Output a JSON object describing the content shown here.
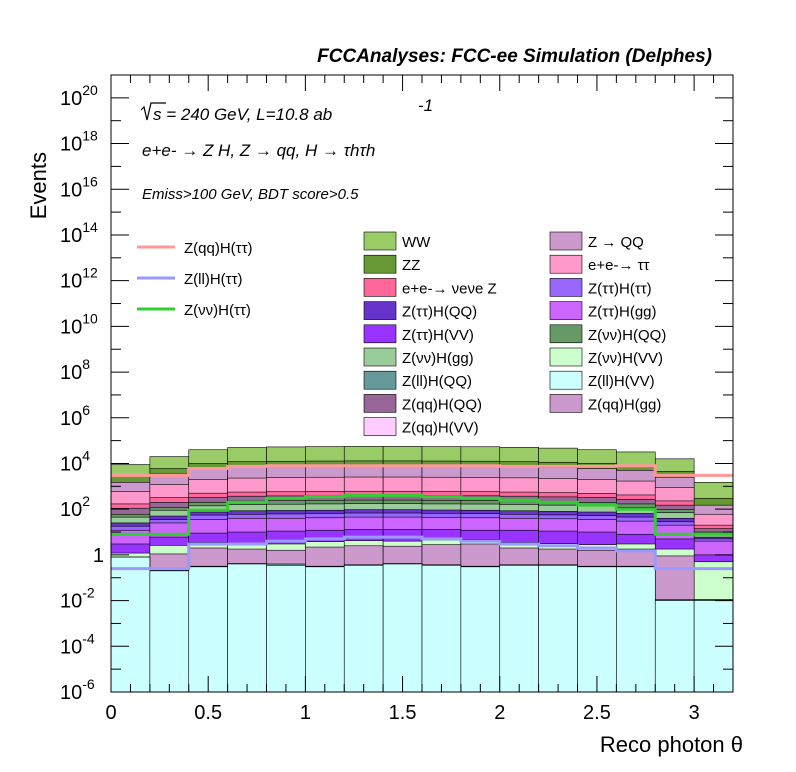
{
  "header": {
    "title": "FCCAnalyses: FCC-ee Simulation (Delphes)"
  },
  "annotations": {
    "sqrt_s": "s = 240 GeV, L=10.8 ab",
    "lumi_exp": "-1",
    "process": "e+e- → Z H, Z → qq, H → τhτh",
    "selection": "Emiss>100 GeV, BDT score>0.5"
  },
  "chart_data": {
    "type": "histogram",
    "title": "FCCAnalyses: FCC-ee Simulation (Delphes)",
    "xlabel": "Reco photon θ",
    "ylabel": "Events",
    "xlim": [
      0,
      3.2
    ],
    "ylim": [
      1e-06,
      1e+21
    ],
    "yscale": "log",
    "x_ticks": [
      0,
      0.5,
      1,
      1.5,
      2,
      2.5,
      3
    ],
    "x_tick_labels": [
      "0",
      "0.5",
      "1",
      "1.5",
      "2",
      "2.5",
      "3"
    ],
    "y_tick_exponents": [
      -6,
      -4,
      -2,
      0,
      2,
      4,
      6,
      8,
      10,
      12,
      14,
      16,
      18,
      20
    ],
    "y_tick_labels": [
      "10-6",
      "10-4",
      "10-2",
      "1",
      "102",
      "104",
      "106",
      "108",
      "1010",
      "1012",
      "1014",
      "1016",
      "1018",
      "1020"
    ],
    "bin_edges": [
      0,
      0.2,
      0.4,
      0.6,
      0.8,
      1.0,
      1.2,
      1.4,
      1.6,
      1.8,
      2.0,
      2.2,
      2.4,
      2.6,
      2.8,
      3.0,
      3.2
    ],
    "stack_levels": [
      {
        "name": "Z(ll)H(VV)",
        "color": "#ccffff",
        "values": [
          0.8,
          0.2,
          0.3,
          0.4,
          0.35,
          0.3,
          0.35,
          0.4,
          0.35,
          0.3,
          0.35,
          0.35,
          0.3,
          0.3,
          0.01,
          0.01
        ]
      },
      {
        "name": "Z(ll)H(QQ)",
        "color": "#669999",
        "values": [
          0.81,
          0.21,
          0.32,
          0.42,
          0.4,
          0.32,
          0.37,
          0.42,
          0.37,
          0.32,
          0.37,
          0.37,
          0.32,
          0.32,
          0.011,
          0.011
        ]
      },
      {
        "name": "Z(qq)H(gg)",
        "color": "#cc99cc",
        "values": [
          0.015,
          1.1,
          2.0,
          1.8,
          1.6,
          2.2,
          2.5,
          2.4,
          2.8,
          3.0,
          2.0,
          1.8,
          1.6,
          1.8,
          0.9,
          0.011
        ]
      },
      {
        "name": "Z(νν)H(VV)",
        "color": "#ccffcc",
        "values": [
          1.2,
          2.6,
          3.5,
          3.2,
          3.0,
          3.8,
          4.2,
          4.0,
          4.5,
          4.8,
          3.5,
          3.1,
          2.8,
          3.0,
          1.8,
          0.5
        ]
      },
      {
        "name": "Z(ττ)H(VV)",
        "color": "#9933ff",
        "values": [
          3.0,
          6.0,
          9.0,
          10.0,
          11.0,
          12.0,
          13.0,
          13.0,
          13.0,
          12.0,
          12.0,
          11.0,
          10.0,
          8.0,
          5.0,
          1.0
        ]
      },
      {
        "name": "Z(ττ)H(gg)",
        "color": "#cc66ff",
        "values": [
          12,
          25,
          35,
          40,
          40,
          42,
          45,
          45,
          44,
          42,
          40,
          38,
          35,
          30,
          20,
          4
        ]
      },
      {
        "name": "Z(ττ)H(ττ)",
        "color": "#9966ff",
        "values": [
          18,
          35,
          55,
          60,
          62,
          65,
          68,
          68,
          66,
          64,
          60,
          56,
          52,
          45,
          28,
          5
        ]
      },
      {
        "name": "Z(ττ)H(QQ)",
        "color": "#6633cc",
        "values": [
          25,
          50,
          75,
          85,
          88,
          90,
          95,
          95,
          92,
          90,
          85,
          80,
          75,
          65,
          40,
          6
        ]
      },
      {
        "name": "Z(νν)H(gg)",
        "color": "#99cc99",
        "values": [
          45,
          90,
          140,
          160,
          165,
          170,
          175,
          175,
          170,
          168,
          160,
          150,
          140,
          120,
          70,
          8
        ]
      },
      {
        "name": "Z(νν)H(QQ)",
        "color": "#669966",
        "values": [
          60,
          120,
          200,
          230,
          235,
          245,
          250,
          250,
          245,
          240,
          230,
          215,
          200,
          170,
          95,
          10
        ]
      },
      {
        "name": "Z(qq)H(QQ)",
        "color": "#996699",
        "values": [
          110,
          200,
          320,
          370,
          380,
          390,
          400,
          400,
          395,
          385,
          370,
          345,
          320,
          270,
          150,
          14
        ]
      },
      {
        "name": "e+e-→ νeνe Z",
        "color": "#ff6699",
        "values": [
          170,
          320,
          500,
          560,
          580,
          600,
          610,
          610,
          600,
          590,
          560,
          530,
          490,
          420,
          230,
          20
        ]
      },
      {
        "name": "e+e-→ ττ",
        "color": "#ff99cc",
        "values": [
          600,
          1200,
          2000,
          2300,
          2400,
          2500,
          2550,
          2550,
          2500,
          2450,
          2350,
          2200,
          2000,
          1700,
          900,
          60
        ]
      },
      {
        "name": "Z → QQ",
        "color": "#cc99cc",
        "values": [
          1500,
          3500,
          6000,
          7000,
          7200,
          7400,
          7500,
          7500,
          7400,
          7300,
          7000,
          6600,
          6000,
          5000,
          2500,
          150
        ]
      },
      {
        "name": "ZZ",
        "color": "#669933",
        "values": [
          2800,
          6000,
          10000,
          12000,
          12500,
          12800,
          13000,
          13000,
          12800,
          12600,
          12000,
          11300,
          10200,
          8500,
          4500,
          300
        ]
      },
      {
        "name": "WW",
        "color": "#99cc66",
        "values": [
          9000,
          20000,
          40000,
          50000,
          53000,
          55000,
          56000,
          56000,
          55000,
          54000,
          51000,
          47000,
          40000,
          32000,
          16000,
          1500
        ]
      }
    ],
    "signal_lines": [
      {
        "name": "Z(qq)H(ττ)",
        "color": "#ff9999",
        "values": [
          3000,
          3000,
          6000,
          7500,
          8000,
          8000,
          8000,
          8000,
          8000,
          8000,
          7500,
          7500,
          7500,
          8000,
          3000,
          3000
        ]
      },
      {
        "name": "Z(ll)H(ττ)",
        "color": "#9999ff",
        "values": [
          0.25,
          0.25,
          3,
          3,
          4,
          5,
          6,
          6,
          5,
          4,
          3,
          2.5,
          2,
          1.5,
          0.25,
          0.25
        ]
      },
      {
        "name": "Z(νν)H(ττ)",
        "color": "#33cc33",
        "values": [
          8,
          8,
          90,
          200,
          300,
          350,
          400,
          400,
          350,
          300,
          250,
          200,
          150,
          100,
          8,
          8
        ]
      }
    ],
    "legend_lines": [
      {
        "label": "Z(qq)H(ττ)",
        "color": "#ff9999"
      },
      {
        "label": "Z(ll)H(ττ)",
        "color": "#9999ff"
      },
      {
        "label": "Z(νν)H(ττ)",
        "color": "#33cc33"
      }
    ],
    "legend_boxes": [
      {
        "label": "WW",
        "color": "#99cc66"
      },
      {
        "label": "ZZ",
        "color": "#669933"
      },
      {
        "label": "e+e-→ νeνe Z",
        "color": "#ff6699"
      },
      {
        "label": "Z(ττ)H(QQ)",
        "color": "#6633cc"
      },
      {
        "label": "Z(ττ)H(VV)",
        "color": "#9933ff"
      },
      {
        "label": "Z(νν)H(gg)",
        "color": "#99cc99"
      },
      {
        "label": "Z(ll)H(QQ)",
        "color": "#669999"
      },
      {
        "label": "Z(qq)H(QQ)",
        "color": "#996699"
      },
      {
        "label": "Z(qq)H(VV)",
        "color": "#ffccff"
      },
      {
        "label": "Z → QQ",
        "color": "#cc99cc"
      },
      {
        "label": "e+e-→ ττ",
        "color": "#ff99cc"
      },
      {
        "label": "Z(ττ)H(ττ)",
        "color": "#9966ff"
      },
      {
        "label": "Z(ττ)H(gg)",
        "color": "#cc66ff"
      },
      {
        "label": "Z(νν)H(QQ)",
        "color": "#669966"
      },
      {
        "label": "Z(νν)H(VV)",
        "color": "#ccffcc"
      },
      {
        "label": "Z(ll)H(VV)",
        "color": "#ccffff"
      },
      {
        "label": "Z(qq)H(gg)",
        "color": "#cc99cc"
      }
    ]
  }
}
